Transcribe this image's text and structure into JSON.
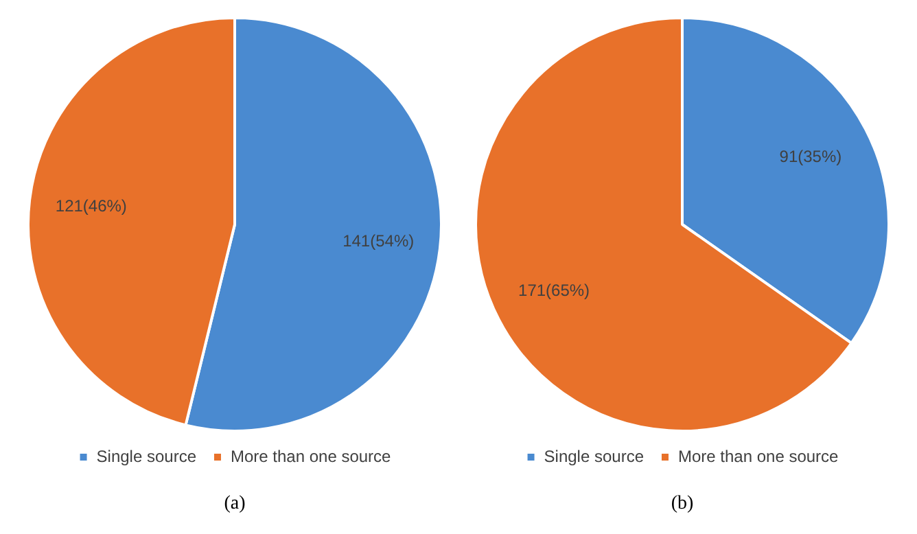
{
  "chart_data": [
    {
      "type": "pie",
      "categories": [
        "Single source",
        "More than one source"
      ],
      "values": [
        141,
        121
      ],
      "value_labels": [
        "141(54%)",
        "121(46%)"
      ],
      "colors": [
        "#4a8ad0",
        "#e8712a"
      ],
      "legend": "bottom",
      "annotations": [
        "(a)"
      ]
    },
    {
      "type": "pie",
      "categories": [
        "Single source",
        "More than one source"
      ],
      "values": [
        91,
        171
      ],
      "value_labels": [
        "91(35%)",
        "171(65%)"
      ],
      "colors": [
        "#4a8ad0",
        "#e8712a"
      ],
      "legend": "bottom",
      "annotations": [
        "(b)"
      ]
    }
  ]
}
